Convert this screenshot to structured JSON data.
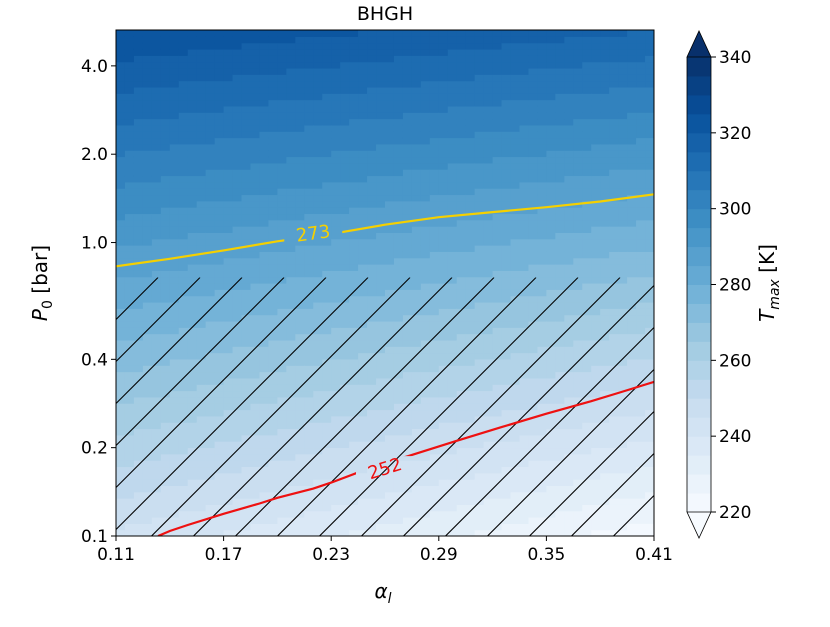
{
  "chart_data": {
    "type": "heatmap",
    "title": "BHGH",
    "xlabel": "α",
    "xlabel_sub": "l",
    "ylabel": "P",
    "ylabel_sub": "0",
    "ylabel_unit": " [bar]",
    "xlim": [
      0.11,
      0.41
    ],
    "ylim": [
      0.1,
      5.3
    ],
    "yscale": "log",
    "x_ticks": [
      {
        "value": 0.11,
        "label": "0.11"
      },
      {
        "value": 0.17,
        "label": "0.17"
      },
      {
        "value": 0.23,
        "label": "0.23"
      },
      {
        "value": 0.29,
        "label": "0.29"
      },
      {
        "value": 0.35,
        "label": "0.35"
      },
      {
        "value": 0.41,
        "label": "0.41"
      }
    ],
    "y_ticks": [
      {
        "value": 0.1,
        "label": "0.1"
      },
      {
        "value": 0.2,
        "label": "0.2"
      },
      {
        "value": 0.4,
        "label": "0.4"
      },
      {
        "value": 1.0,
        "label": "1.0"
      },
      {
        "value": 2.0,
        "label": "2.0"
      },
      {
        "value": 4.0,
        "label": "4.0"
      }
    ],
    "colorbar": {
      "label": "T",
      "label_sub": "max",
      "label_unit": " [K]",
      "range": [
        220,
        340
      ],
      "extend": "both",
      "ticks": [
        {
          "value": 220,
          "label": "220"
        },
        {
          "value": 240,
          "label": "240"
        },
        {
          "value": 260,
          "label": "260"
        },
        {
          "value": 280,
          "label": "280"
        },
        {
          "value": 300,
          "label": "300"
        },
        {
          "value": 320,
          "label": "320"
        },
        {
          "value": 340,
          "label": "340"
        }
      ]
    },
    "contours": [
      {
        "level_label": "273",
        "color": "#f5d000",
        "label_at": {
          "x": 0.22,
          "y": 1.07
        },
        "points": [
          [
            0.11,
            0.83
          ],
          [
            0.14,
            0.88
          ],
          [
            0.17,
            0.94
          ],
          [
            0.2,
            1.01
          ],
          [
            0.23,
            1.07
          ],
          [
            0.26,
            1.15
          ],
          [
            0.29,
            1.22
          ],
          [
            0.32,
            1.27
          ],
          [
            0.35,
            1.32
          ],
          [
            0.38,
            1.38
          ],
          [
            0.41,
            1.46
          ]
        ]
      },
      {
        "level_label": "252",
        "color": "#ee1111",
        "label_at": {
          "x": 0.26,
          "y": 0.169
        },
        "points": [
          [
            0.1335,
            0.1
          ],
          [
            0.14,
            0.104
          ],
          [
            0.15,
            0.109
          ],
          [
            0.17,
            0.119
          ],
          [
            0.19,
            0.129
          ],
          [
            0.2,
            0.135
          ],
          [
            0.22,
            0.145
          ],
          [
            0.23,
            0.152
          ],
          [
            0.25,
            0.169
          ],
          [
            0.275,
            0.189
          ],
          [
            0.3,
            0.211
          ],
          [
            0.325,
            0.235
          ],
          [
            0.35,
            0.261
          ],
          [
            0.375,
            0.288
          ],
          [
            0.39,
            0.307
          ],
          [
            0.41,
            0.335
          ]
        ]
      }
    ],
    "hatched_region": {
      "x_range": [
        0.11,
        0.41
      ],
      "y_range": [
        0.1,
        0.76
      ]
    },
    "field": {
      "t_left_bottom": 244,
      "t_right_bottom": 222,
      "t_left_top": 325,
      "t_right_top": 315
    }
  }
}
